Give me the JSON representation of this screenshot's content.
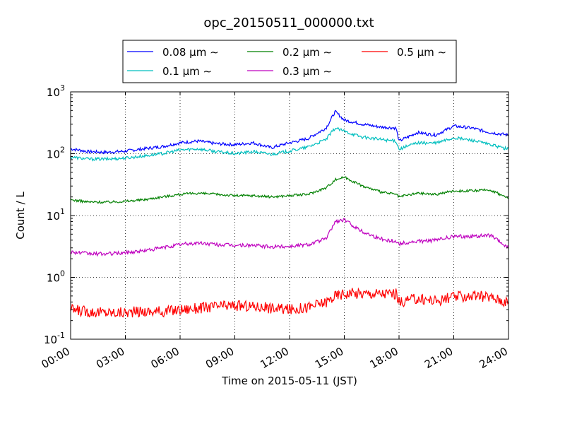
{
  "chart_data": {
    "type": "line",
    "title": "opc_20150511_000000.txt",
    "xlabel": "Time on 2015-05-11 (JST)",
    "ylabel": "Count / L",
    "yscale": "log",
    "ylim": [
      0.1,
      1000
    ],
    "xlim": [
      "00:00",
      "24:00"
    ],
    "x_ticks": [
      "00:00",
      "03:00",
      "06:00",
      "09:00",
      "12:00",
      "15:00",
      "18:00",
      "21:00",
      "24:00"
    ],
    "y_ticks": [
      {
        "base": "10",
        "exp": "-1"
      },
      {
        "base": "10",
        "exp": "0"
      },
      {
        "base": "10",
        "exp": "1"
      },
      {
        "base": "10",
        "exp": "2"
      },
      {
        "base": "10",
        "exp": "3"
      }
    ],
    "grid": true,
    "legend_position": "top-center",
    "x": [
      "00:00",
      "01:00",
      "02:00",
      "03:00",
      "04:00",
      "05:00",
      "06:00",
      "07:00",
      "08:00",
      "09:00",
      "10:00",
      "11:00",
      "12:00",
      "13:00",
      "14:00",
      "14:30",
      "15:00",
      "16:00",
      "17:00",
      "17:50",
      "18:00",
      "19:00",
      "20:00",
      "21:00",
      "22:00",
      "23:00",
      "24:00"
    ],
    "series": [
      {
        "name": "0.08 μm ∼",
        "color": "#0000ff",
        "values": [
          120,
          108,
          105,
          110,
          120,
          130,
          150,
          160,
          145,
          140,
          150,
          125,
          150,
          175,
          260,
          480,
          350,
          300,
          270,
          260,
          160,
          220,
          200,
          280,
          260,
          220,
          200
        ]
      },
      {
        "name": "0.1 μm ∼",
        "color": "#00bfbf",
        "values": [
          88,
          82,
          82,
          85,
          92,
          100,
          115,
          120,
          108,
          100,
          108,
          98,
          110,
          128,
          170,
          260,
          230,
          185,
          170,
          160,
          118,
          150,
          148,
          180,
          165,
          140,
          118
        ]
      },
      {
        "name": "0.2 μm ∼",
        "color": "#008000",
        "values": [
          18,
          16.5,
          16.5,
          17,
          18,
          20,
          22,
          23,
          22,
          21,
          21,
          20,
          21,
          22,
          28,
          38,
          42,
          30,
          24,
          22,
          20,
          23,
          22,
          25,
          25,
          26,
          19
        ]
      },
      {
        "name": "0.3 μm ∼",
        "color": "#bf00bf",
        "values": [
          2.6,
          2.4,
          2.4,
          2.5,
          2.7,
          3.0,
          3.4,
          3.6,
          3.4,
          3.3,
          3.3,
          3.1,
          3.2,
          3.4,
          4.2,
          8.0,
          8.5,
          5.5,
          4.2,
          3.8,
          3.5,
          3.8,
          4.0,
          4.6,
          4.6,
          4.8,
          3.0
        ]
      },
      {
        "name": "0.5 μm ∼",
        "color": "#ff0000",
        "values": [
          0.3,
          0.28,
          0.27,
          0.27,
          0.28,
          0.28,
          0.3,
          0.32,
          0.34,
          0.35,
          0.34,
          0.32,
          0.3,
          0.33,
          0.4,
          0.5,
          0.55,
          0.55,
          0.55,
          0.55,
          0.4,
          0.45,
          0.42,
          0.48,
          0.5,
          0.48,
          0.4
        ]
      }
    ]
  }
}
